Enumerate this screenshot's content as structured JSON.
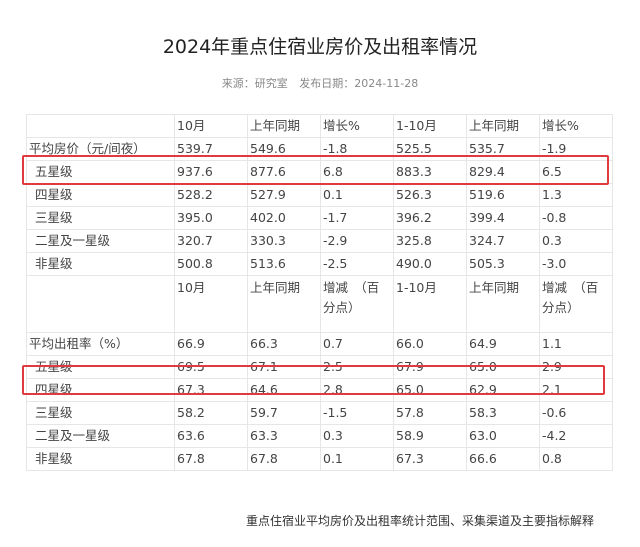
{
  "title": "2024年重点住宿业房价及出租率情况",
  "meta": {
    "source": "来源：研究室",
    "date": "发布日期：2024-11-28"
  },
  "price_table": {
    "header": [
      "",
      "10月",
      "上年同期",
      "增长%",
      "1-10月",
      "上年同期",
      "增长%"
    ],
    "rows": [
      [
        "平均房价（元/间夜）",
        "539.7",
        "549.6",
        "-1.8",
        "525.5",
        "535.7",
        "-1.9"
      ],
      [
        "五星级",
        "937.6",
        "877.6",
        "6.8",
        "883.3",
        "829.4",
        "6.5"
      ],
      [
        "四星级",
        "528.2",
        "527.9",
        "0.1",
        "526.3",
        "519.6",
        "1.3"
      ],
      [
        "三星级",
        "395.0",
        "402.0",
        "-1.7",
        "396.2",
        "399.4",
        "-0.8"
      ],
      [
        "二星及一星级",
        "320.7",
        "330.3",
        "-2.9",
        "325.8",
        "324.7",
        "0.3"
      ],
      [
        "非星级",
        "500.8",
        "513.6",
        "-2.5",
        "490.0",
        "505.3",
        "-3.0"
      ]
    ]
  },
  "occupancy_table": {
    "header": [
      "",
      "10月",
      "上年同期",
      "增减　（百分点）",
      "1-10月",
      "上年同期",
      "增减　（百分点）"
    ],
    "rows": [
      [
        "平均出租率（%）",
        "66.9",
        "66.3",
        "0.7",
        "66.0",
        "64.9",
        "1.1"
      ],
      [
        "五星级",
        "69.5",
        "67.1",
        "2.5",
        "67.9",
        "65.0",
        "2.9"
      ],
      [
        "四星级",
        "67.3",
        "64.6",
        "2.8",
        "65.0",
        "62.9",
        "2.1"
      ],
      [
        "三星级",
        "58.2",
        "59.7",
        "-1.5",
        "57.8",
        "58.3",
        "-0.6"
      ],
      [
        "二星及一星级",
        "63.6",
        "63.3",
        "0.3",
        "58.9",
        "63.0",
        "-4.2"
      ],
      [
        "非星级",
        "67.8",
        "67.8",
        "0.1",
        "67.3",
        "66.6",
        "0.8"
      ]
    ]
  },
  "footer_link": "重点住宿业平均房价及出租率统计范围、采集渠道及主要指标解释",
  "highlight_color": "#e0393e"
}
